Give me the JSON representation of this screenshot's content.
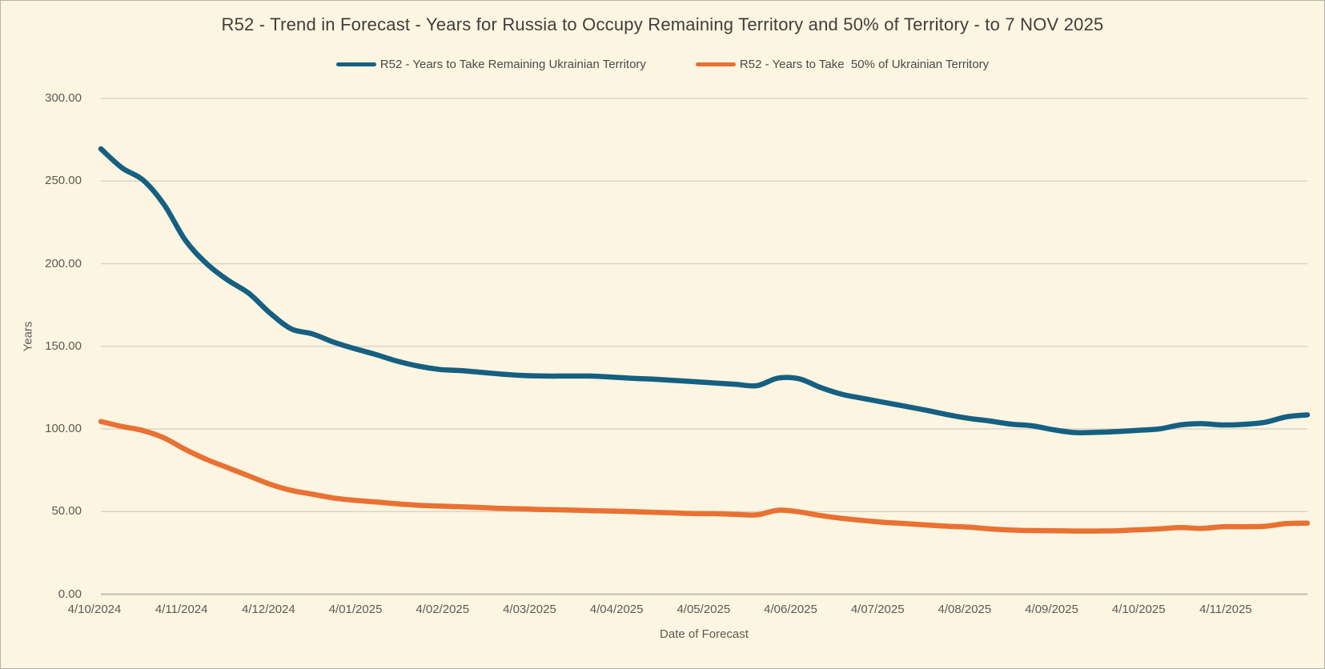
{
  "title": "R52 - Trend in Forecast - Years for Russia to Occupy Remaining Territory and 50% of Territory - to 7 NOV 2025",
  "colors": {
    "background": "#FCF5E2",
    "series_remaining": "#156082",
    "series_half": "#E97132",
    "gridline": "#D9D5C9",
    "axis_line": "#C0BCB0",
    "text": "#5b5a55",
    "title_text": "#3f3e3a"
  },
  "chart_data": {
    "type": "line",
    "title": "R52 - Trend in Forecast - Years for Russia to Occupy Remaining Territory and 50% of Territory - to 7 NOV 2025",
    "xlabel": "Date of Forecast",
    "ylabel": "Years",
    "ylim": [
      0,
      300
    ],
    "ytick_step": 50,
    "y_tick_labels": [
      "0.00",
      "50.00",
      "100.00",
      "150.00",
      "200.00",
      "250.00",
      "300.00"
    ],
    "x_tick_labels": [
      "4/10/2024",
      "4/11/2024",
      "4/12/2024",
      "4/01/2025",
      "4/02/2025",
      "4/03/2025",
      "4/04/2025",
      "4/05/2025",
      "4/06/2025",
      "4/07/2025",
      "4/08/2025",
      "4/09/2025",
      "4/10/2025",
      "4/11/2025"
    ],
    "grid": "horizontal-only",
    "legend_position": "top",
    "categories": [
      "4/10/2024",
      "11/10/2024",
      "18/10/2024",
      "25/10/2024",
      "1/11/2024",
      "8/11/2024",
      "15/11/2024",
      "22/11/2024",
      "29/11/2024",
      "6/12/2024",
      "13/12/2024",
      "20/12/2024",
      "27/12/2024",
      "3/01/2025",
      "10/01/2025",
      "17/01/2025",
      "24/01/2025",
      "31/01/2025",
      "7/02/2025",
      "14/02/2025",
      "21/02/2025",
      "28/02/2025",
      "7/03/2025",
      "14/03/2025",
      "21/03/2025",
      "28/03/2025",
      "4/04/2025",
      "11/04/2025",
      "18/04/2025",
      "25/04/2025",
      "2/05/2025",
      "9/05/2025",
      "16/05/2025",
      "23/05/2025",
      "30/05/2025",
      "6/06/2025",
      "13/06/2025",
      "20/06/2025",
      "27/06/2025",
      "4/07/2025",
      "11/07/2025",
      "18/07/2025",
      "25/07/2025",
      "1/08/2025",
      "8/08/2025",
      "15/08/2025",
      "22/08/2025",
      "29/08/2025",
      "5/09/2025",
      "12/09/2025",
      "19/09/2025",
      "26/09/2025",
      "3/10/2025",
      "10/10/2025",
      "17/10/2025",
      "24/10/2025",
      "31/10/2025",
      "7/11/2025"
    ],
    "series": [
      {
        "name": "R52 - Years to Take Remaining Ukrainian Territory",
        "color": "#156082",
        "values": [
          269.5,
          258,
          250.5,
          235.5,
          214,
          200,
          190,
          182,
          170,
          160.5,
          157.5,
          152.5,
          148.5,
          145,
          141,
          138,
          136,
          135.3,
          134.2,
          133.1,
          132.3,
          132,
          132,
          132,
          131.5,
          130.7,
          130.2,
          129.4,
          128.6,
          127.8,
          127,
          126.2,
          130.8,
          130.3,
          125.1,
          121,
          118.5,
          116.1,
          113.7,
          111.3,
          108.6,
          106.4,
          104.8,
          102.9,
          101.9,
          99.5,
          97.8,
          97.9,
          98.4,
          99.2,
          100,
          102.4,
          103.2,
          102.4,
          102.8,
          104,
          107.3,
          108.5
        ]
      },
      {
        "name": "R52 - Years to Take  50% of Ukrainian Territory",
        "color": "#E97132",
        "values": [
          104.5,
          101.5,
          99,
          94.5,
          87.5,
          81.5,
          76.5,
          71.5,
          66.5,
          62.8,
          60.5,
          58.2,
          56.8,
          55.8,
          54.7,
          53.8,
          53.3,
          52.9,
          52.4,
          51.9,
          51.6,
          51.2,
          51,
          50.6,
          50.3,
          50,
          49.6,
          49.2,
          48.8,
          48.7,
          48.3,
          48,
          50.8,
          49.8,
          47.6,
          45.9,
          44.6,
          43.5,
          42.7,
          41.9,
          41.1,
          40.6,
          39.5,
          38.8,
          38.5,
          38.4,
          38.2,
          38.2,
          38.4,
          39,
          39.5,
          40.3,
          39.8,
          40.8,
          40.8,
          41.1,
          42.7,
          43
        ]
      }
    ]
  }
}
